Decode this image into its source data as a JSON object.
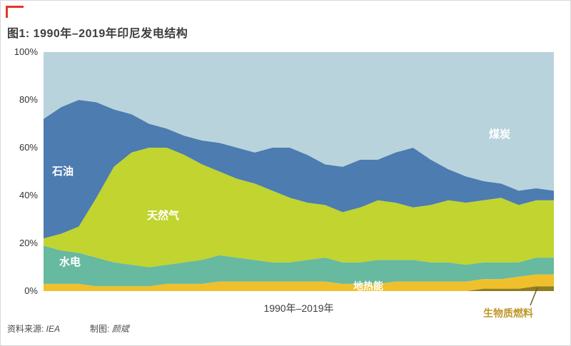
{
  "figure": {
    "title": "图1: 1990年–2019年印尼发电结构",
    "x_axis_label": "1990年–2019年",
    "source_prefix": "资料来源: ",
    "source_value": "IEA",
    "credit_prefix": "制图: ",
    "credit_value": "颜斌",
    "accent_color": "#e2382a"
  },
  "chart_data": {
    "type": "area",
    "stacked": true,
    "unit": "percent-share",
    "title": "1990年–2019年印尼发电结构",
    "grid": false,
    "legend_position": "in-plot-labels",
    "ylim": [
      0,
      100
    ],
    "yticks": [
      "0%",
      "20%",
      "40%",
      "60%",
      "80%",
      "100%"
    ],
    "x": [
      1990,
      1991,
      1992,
      1993,
      1994,
      1995,
      1996,
      1997,
      1998,
      1999,
      2000,
      2001,
      2002,
      2003,
      2004,
      2005,
      2006,
      2007,
      2008,
      2009,
      2010,
      2011,
      2012,
      2013,
      2014,
      2015,
      2016,
      2017,
      2018,
      2019
    ],
    "series": [
      {
        "key": "biomass",
        "name": "生物质燃料",
        "color": "#8f7d1f",
        "values": [
          0,
          0,
          0,
          0,
          0,
          0,
          0,
          0,
          0,
          0,
          0,
          0,
          0,
          0,
          0,
          0,
          0,
          0,
          0,
          0,
          0,
          0,
          0,
          0,
          0,
          1,
          1,
          1,
          2,
          2
        ]
      },
      {
        "key": "geothermal",
        "name": "地热能",
        "color": "#f0c02c",
        "values": [
          3,
          3,
          3,
          2,
          2,
          2,
          2,
          3,
          3,
          3,
          4,
          4,
          4,
          4,
          4,
          4,
          4,
          3,
          3,
          3,
          4,
          4,
          4,
          4,
          4,
          4,
          4,
          5,
          5,
          5
        ]
      },
      {
        "key": "hydro",
        "name": "水电",
        "color": "#67b9a0",
        "values": [
          16,
          14,
          13,
          12,
          10,
          9,
          8,
          8,
          9,
          10,
          11,
          10,
          9,
          8,
          8,
          9,
          10,
          9,
          9,
          10,
          9,
          9,
          8,
          8,
          7,
          7,
          7,
          6,
          7,
          7
        ]
      },
      {
        "key": "natural-gas",
        "name": "天然气",
        "color": "#c1d42f",
        "values": [
          3,
          7,
          11,
          25,
          40,
          47,
          50,
          49,
          45,
          40,
          35,
          33,
          32,
          30,
          27,
          24,
          22,
          21,
          23,
          25,
          24,
          22,
          24,
          26,
          26,
          26,
          27,
          24,
          24,
          24
        ]
      },
      {
        "key": "oil",
        "name": "石油",
        "color": "#4c7cb0",
        "values": [
          50,
          53,
          53,
          40,
          24,
          16,
          10,
          8,
          8,
          10,
          12,
          13,
          13,
          18,
          21,
          20,
          17,
          19,
          20,
          17,
          21,
          25,
          19,
          13,
          11,
          8,
          6,
          6,
          5,
          4
        ]
      },
      {
        "key": "coal",
        "name": "煤炭",
        "color": "#b9d3dc",
        "values": [
          28,
          23,
          20,
          21,
          24,
          26,
          30,
          32,
          35,
          37,
          38,
          40,
          42,
          40,
          40,
          43,
          47,
          48,
          45,
          45,
          42,
          40,
          45,
          49,
          52,
          54,
          55,
          58,
          57,
          58
        ]
      }
    ]
  }
}
